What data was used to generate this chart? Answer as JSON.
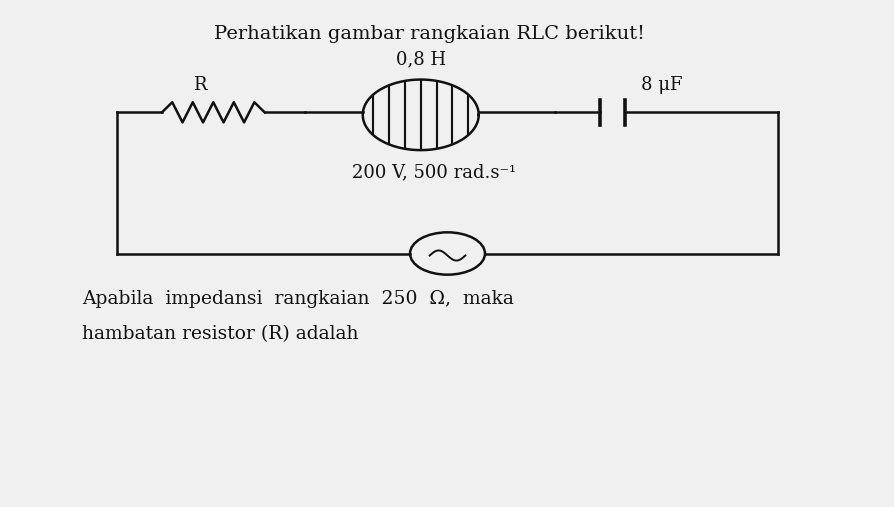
{
  "title": "Perhatikan gambar rangkaian RLC berikut!",
  "subtitle_line1": "Apabila  impedansi  rangkaian  250  Ω,  maka",
  "subtitle_line2": "hambatan resistor (R) adalah",
  "label_R": "R",
  "label_L": "0,8 H",
  "label_C": "8 μF",
  "label_source": "200 V, 500 rad.s⁻¹",
  "bg_color": "#f0f0f0",
  "line_color": "#111111",
  "text_color": "#111111",
  "fig_width": 8.95,
  "fig_height": 5.07,
  "dpi": 100
}
